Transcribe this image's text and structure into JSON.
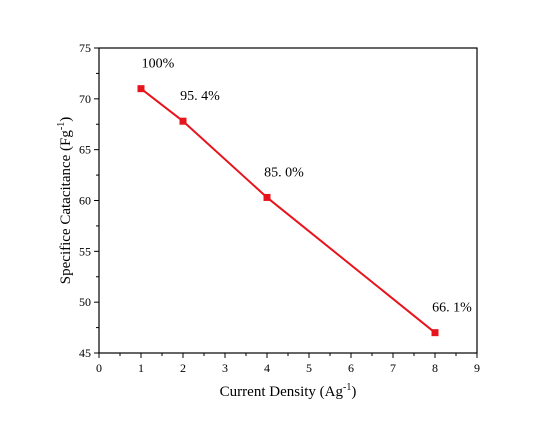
{
  "chart_data": {
    "type": "line",
    "title": "",
    "xlabel": {
      "main": "Current Density (Ag",
      "sup": "-1",
      "close": ")"
    },
    "ylabel": {
      "main": "Specifice Catacitance (Fg",
      "sup": "-1",
      "close": ")"
    },
    "xlim": [
      0,
      9
    ],
    "ylim": [
      45,
      75
    ],
    "xticks": [
      0,
      1,
      2,
      3,
      4,
      5,
      6,
      7,
      8,
      9
    ],
    "yticks": [
      45,
      50,
      55,
      60,
      65,
      70,
      75
    ],
    "grid": false,
    "legend": "none",
    "series": [
      {
        "color": "#e8141b",
        "marker": "square",
        "points": [
          {
            "x": 1,
            "y": 71.0,
            "label": "100%"
          },
          {
            "x": 2,
            "y": 67.8,
            "label": "95. 4%"
          },
          {
            "x": 4,
            "y": 60.3,
            "label": "85. 0%"
          },
          {
            "x": 8,
            "y": 47.0,
            "label": "66. 1%"
          }
        ]
      }
    ]
  }
}
